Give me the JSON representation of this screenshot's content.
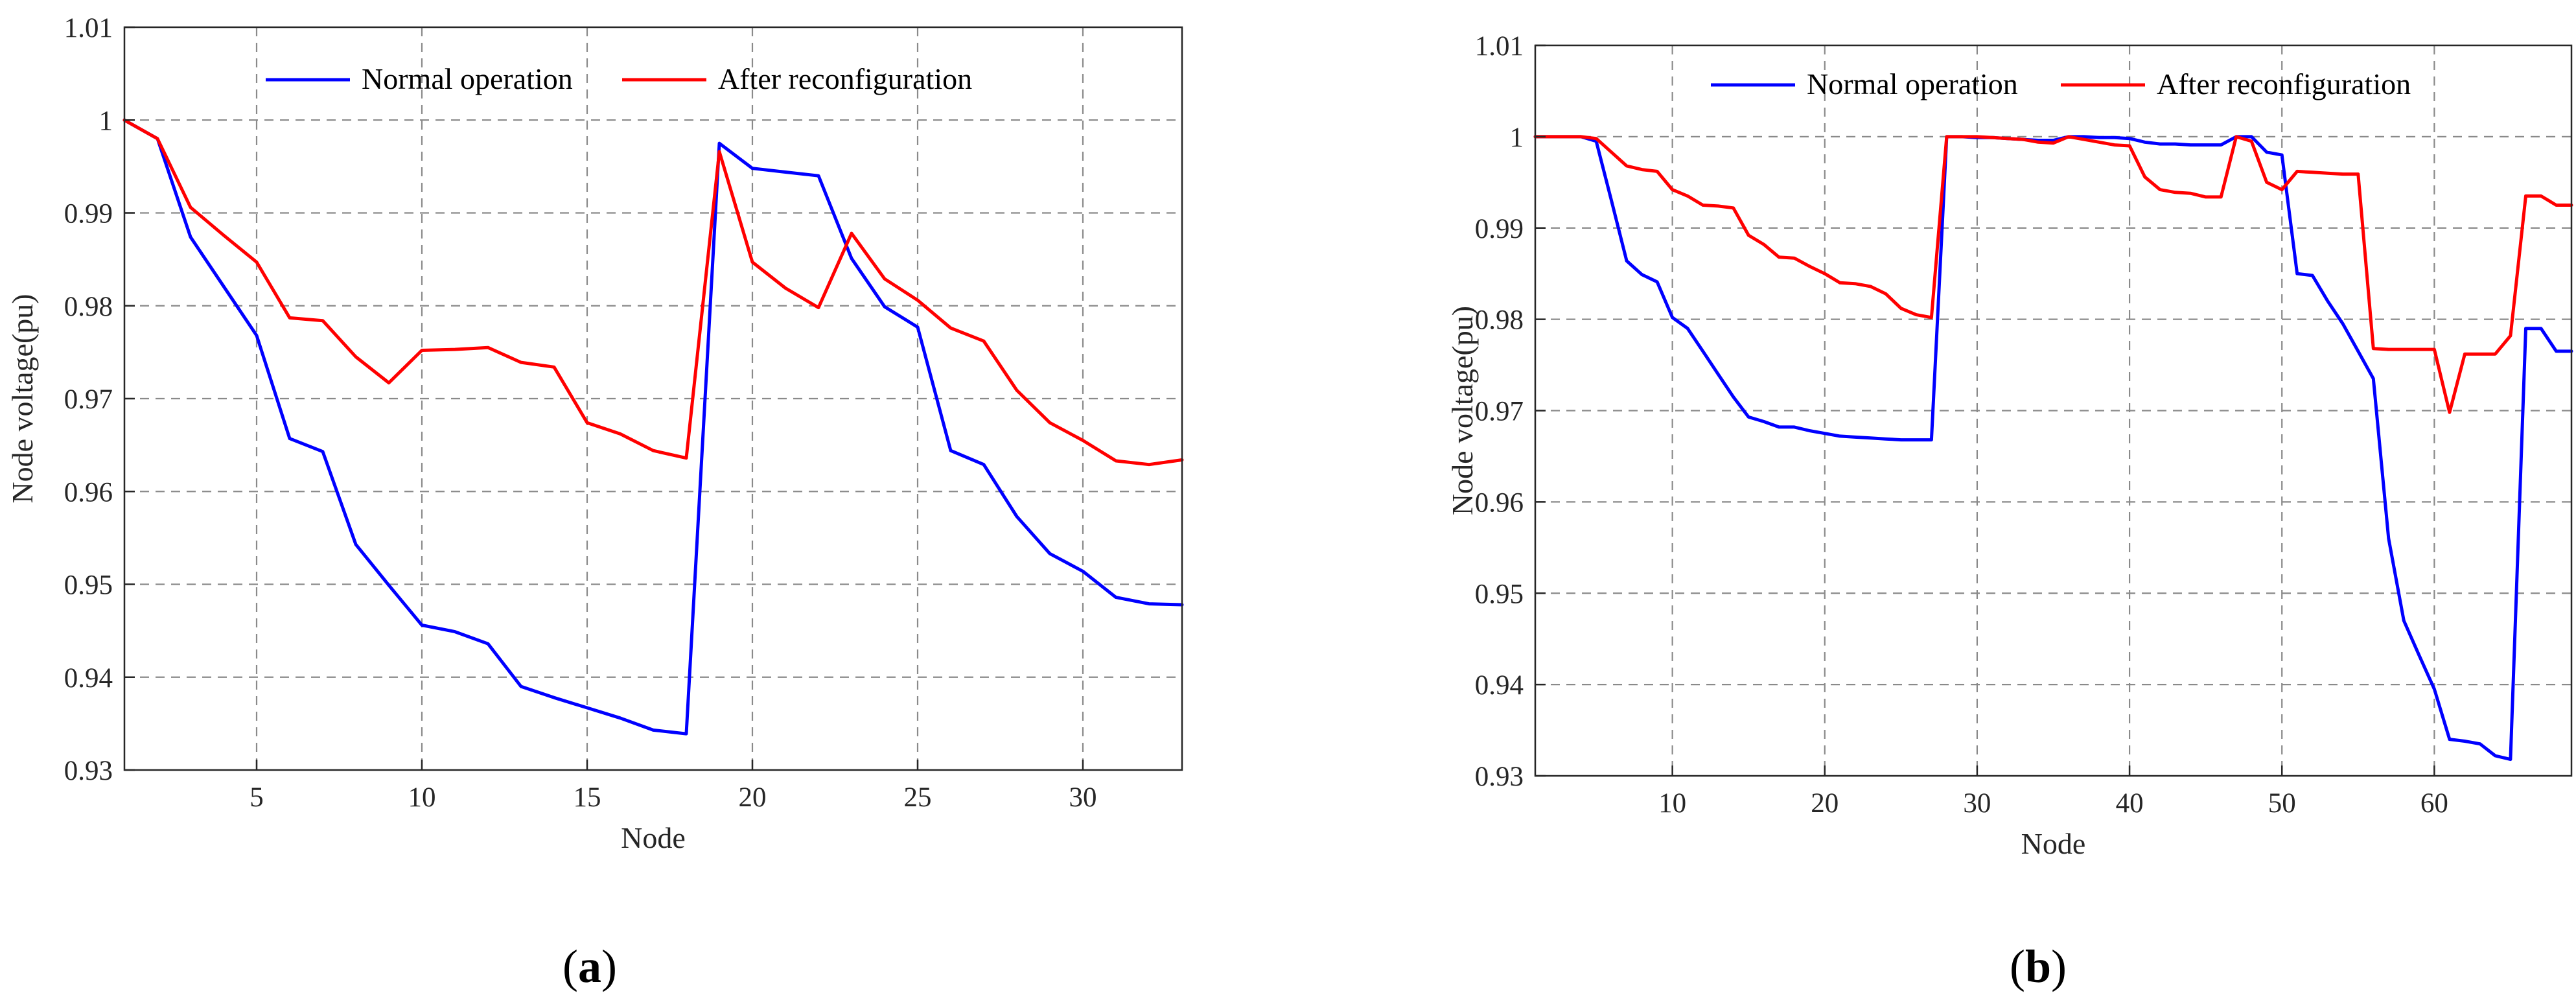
{
  "chart_data": [
    {
      "type": "line",
      "panel_label": "a",
      "xlabel": "Node",
      "ylabel": "Node voltage(pu)",
      "xlim": [
        1,
        33
      ],
      "ylim": [
        0.93,
        1.01
      ],
      "xticks": [
        5,
        10,
        15,
        20,
        25,
        30
      ],
      "yticks": [
        0.93,
        0.94,
        0.95,
        0.96,
        0.97,
        0.98,
        0.99,
        1,
        1.01
      ],
      "ytick_labels": [
        "0.93",
        "0.94",
        "0.95",
        "0.96",
        "0.97",
        "0.98",
        "0.99",
        "1",
        "1.01"
      ],
      "grid": true,
      "legend_position": "top",
      "x": [
        1,
        2,
        3,
        4,
        5,
        6,
        7,
        8,
        9,
        10,
        11,
        12,
        13,
        14,
        15,
        16,
        17,
        18,
        19,
        20,
        21,
        22,
        23,
        24,
        25,
        26,
        27,
        28,
        29,
        30,
        31,
        32,
        33
      ],
      "series": [
        {
          "name": "Normal operation",
          "color": "#0000ff",
          "values": [
            1.0,
            0.998,
            0.9874,
            0.9821,
            0.9768,
            0.9657,
            0.9643,
            0.9543,
            0.9499,
            0.9456,
            0.9449,
            0.9436,
            0.939,
            0.9378,
            0.9367,
            0.9356,
            0.9343,
            0.9339,
            0.9975,
            0.9948,
            0.9944,
            0.994,
            0.9851,
            0.9799,
            0.9777,
            0.9644,
            0.9629,
            0.9573,
            0.9533,
            0.9514,
            0.9486,
            0.9479,
            0.9478
          ]
        },
        {
          "name": "After reconfiguration",
          "color": "#ff0000",
          "values": [
            1.0,
            0.998,
            0.9906,
            0.9876,
            0.9847,
            0.9787,
            0.9784,
            0.9745,
            0.9717,
            0.9752,
            0.9753,
            0.9755,
            0.9739,
            0.9734,
            0.9674,
            0.9662,
            0.9644,
            0.9636,
            0.9966,
            0.9847,
            0.9819,
            0.9798,
            0.9878,
            0.9829,
            0.9806,
            0.9776,
            0.9762,
            0.9709,
            0.9674,
            0.9655,
            0.9633,
            0.9629,
            0.9634
          ]
        }
      ]
    },
    {
      "type": "line",
      "panel_label": "b",
      "xlabel": "Node",
      "ylabel": "Node voltage(pu)",
      "xlim": [
        1,
        69
      ],
      "ylim": [
        0.93,
        1.01
      ],
      "xticks": [
        10,
        20,
        30,
        40,
        50,
        60
      ],
      "yticks": [
        0.93,
        0.94,
        0.95,
        0.96,
        0.97,
        0.98,
        0.99,
        1,
        1.01
      ],
      "ytick_labels": [
        "0.93",
        "0.94",
        "0.95",
        "0.96",
        "0.97",
        "0.98",
        "0.99",
        "1",
        "1.01"
      ],
      "grid": true,
      "legend_position": "top",
      "x": [
        1,
        2,
        3,
        4,
        5,
        6,
        7,
        8,
        9,
        10,
        11,
        12,
        13,
        14,
        15,
        16,
        17,
        18,
        19,
        20,
        21,
        22,
        23,
        24,
        25,
        26,
        27,
        28,
        29,
        30,
        31,
        32,
        33,
        34,
        35,
        36,
        37,
        38,
        39,
        40,
        41,
        42,
        43,
        44,
        45,
        46,
        47,
        48,
        49,
        50,
        51,
        52,
        53,
        54,
        55,
        56,
        57,
        58,
        59,
        60,
        61,
        62,
        63,
        64,
        65,
        66,
        67,
        68,
        69
      ],
      "series": [
        {
          "name": "Normal operation",
          "color": "#0000ff",
          "values": [
            1.0,
            1.0,
            1.0,
            1.0,
            0.9995,
            0.993,
            0.9864,
            0.9849,
            0.9841,
            0.9802,
            0.979,
            0.9765,
            0.974,
            0.9715,
            0.9693,
            0.9688,
            0.9682,
            0.9682,
            0.9678,
            0.9675,
            0.9672,
            0.9671,
            0.967,
            0.9669,
            0.9668,
            0.9668,
            0.9668,
            1.0,
            1.0,
            0.9999,
            0.9999,
            0.9998,
            0.9997,
            0.9996,
            0.9996,
            1.0,
            1.0,
            0.9999,
            0.9999,
            0.9998,
            0.9994,
            0.9992,
            0.9992,
            0.9991,
            0.9991,
            0.9991,
            1.0,
            1.0,
            0.9983,
            0.998,
            0.985,
            0.9848,
            0.982,
            0.9795,
            0.9765,
            0.9735,
            0.956,
            0.947,
            0.9432,
            0.9395,
            0.934,
            0.9338,
            0.9335,
            0.9322,
            0.9318,
            0.979,
            0.979,
            0.9765,
            0.9765
          ]
        },
        {
          "name": "After reconfiguration",
          "color": "#ff0000",
          "values": [
            1.0,
            1.0,
            1.0,
            1.0,
            0.9998,
            0.9983,
            0.9968,
            0.9964,
            0.9962,
            0.9942,
            0.9935,
            0.9925,
            0.9924,
            0.9922,
            0.9892,
            0.9882,
            0.9868,
            0.9867,
            0.9858,
            0.985,
            0.984,
            0.9839,
            0.9836,
            0.9828,
            0.9812,
            0.9805,
            0.9802,
            1.0,
            1.0,
            1.0,
            0.9999,
            0.9998,
            0.9997,
            0.9994,
            0.9993,
            1.0,
            0.9997,
            0.9994,
            0.9991,
            0.999,
            0.9956,
            0.9942,
            0.9939,
            0.9938,
            0.9934,
            0.9934,
            1.0,
            0.9995,
            0.995,
            0.9942,
            0.9962,
            0.9961,
            0.996,
            0.9959,
            0.9959,
            0.9768,
            0.9767,
            0.9767,
            0.9767,
            0.9767,
            0.9698,
            0.9762,
            0.9762,
            0.9762,
            0.9782,
            0.9935,
            0.9935,
            0.9925,
            0.9925
          ]
        }
      ]
    }
  ]
}
